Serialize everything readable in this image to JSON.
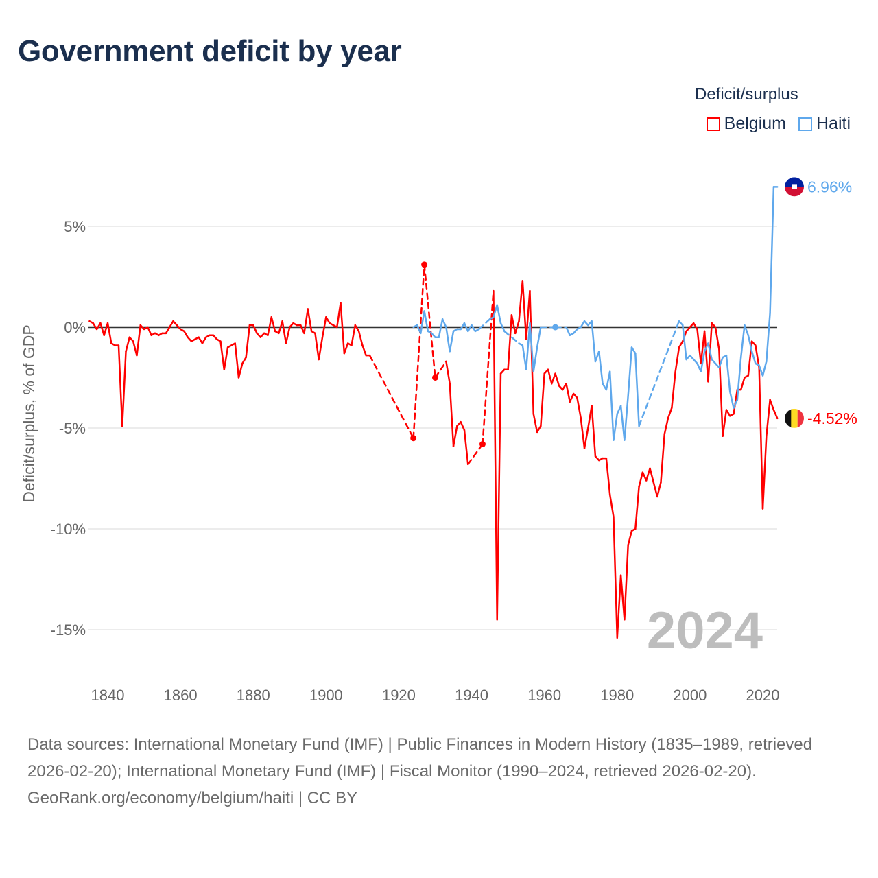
{
  "title": "Government deficit by year",
  "legend": {
    "title": "Deficit/surplus",
    "items": [
      {
        "name": "Belgium",
        "color": "#ff0000"
      },
      {
        "name": "Haiti",
        "color": "#5fa8ec"
      }
    ]
  },
  "chart_data": {
    "type": "line",
    "title": "Government deficit by year",
    "xlabel": "",
    "ylabel": "Deficit/surplus, % of GDP",
    "xlim": [
      1835,
      2024
    ],
    "ylim": [
      -17,
      8
    ],
    "x_ticks": [
      1840,
      1860,
      1880,
      1900,
      1920,
      1940,
      1960,
      1980,
      2000,
      2020
    ],
    "y_ticks": [
      {
        "value": 5,
        "label": "5%"
      },
      {
        "value": 0,
        "label": "0%"
      },
      {
        "value": -5,
        "label": "-5%"
      },
      {
        "value": -10,
        "label": "-10%"
      },
      {
        "value": -15,
        "label": "-15%"
      }
    ],
    "grid": true,
    "current_year": "2024",
    "series": [
      {
        "name": "Belgium",
        "color": "#ff0000",
        "end_label": "-4.52%",
        "points": [
          [
            1835,
            0.3
          ],
          [
            1836,
            0.2
          ],
          [
            1837,
            -0.1
          ],
          [
            1838,
            0.2
          ],
          [
            1839,
            -0.4
          ],
          [
            1840,
            0.2
          ],
          [
            1841,
            -0.8
          ],
          [
            1842,
            -0.9
          ],
          [
            1843,
            -0.9
          ],
          [
            1844,
            -4.9
          ],
          [
            1845,
            -1.2
          ],
          [
            1846,
            -0.5
          ],
          [
            1847,
            -0.7
          ],
          [
            1848,
            -1.4
          ],
          [
            1849,
            0.1
          ],
          [
            1850,
            -0.1
          ],
          [
            1851,
            0
          ],
          [
            1852,
            -0.4
          ],
          [
            1853,
            -0.3
          ],
          [
            1854,
            -0.4
          ],
          [
            1855,
            -0.3
          ],
          [
            1856,
            -0.3
          ],
          [
            1857,
            0
          ],
          [
            1858,
            0.3
          ],
          [
            1859,
            0.1
          ],
          [
            1860,
            -0.1
          ],
          [
            1861,
            -0.2
          ],
          [
            1862,
            -0.5
          ],
          [
            1863,
            -0.7
          ],
          [
            1864,
            -0.6
          ],
          [
            1865,
            -0.5
          ],
          [
            1866,
            -0.8
          ],
          [
            1867,
            -0.5
          ],
          [
            1868,
            -0.4
          ],
          [
            1869,
            -0.4
          ],
          [
            1870,
            -0.6
          ],
          [
            1871,
            -0.7
          ],
          [
            1872,
            -2.1
          ],
          [
            1873,
            -1.0
          ],
          [
            1874,
            -0.9
          ],
          [
            1875,
            -0.8
          ],
          [
            1876,
            -2.5
          ],
          [
            1877,
            -1.8
          ],
          [
            1878,
            -1.5
          ],
          [
            1879,
            0.1
          ],
          [
            1880,
            0.1
          ],
          [
            1881,
            -0.3
          ],
          [
            1882,
            -0.5
          ],
          [
            1883,
            -0.3
          ],
          [
            1884,
            -0.4
          ],
          [
            1885,
            0.5
          ],
          [
            1886,
            -0.2
          ],
          [
            1887,
            -0.3
          ],
          [
            1888,
            0.3
          ],
          [
            1889,
            -0.8
          ],
          [
            1890,
            0
          ],
          [
            1891,
            0.2
          ],
          [
            1892,
            0.1
          ],
          [
            1893,
            0.1
          ],
          [
            1894,
            -0.3
          ],
          [
            1895,
            0.9
          ],
          [
            1896,
            -0.2
          ],
          [
            1897,
            -0.3
          ],
          [
            1898,
            -1.6
          ],
          [
            1899,
            -0.5
          ],
          [
            1900,
            0.5
          ],
          [
            1901,
            0.2
          ],
          [
            1902,
            0.1
          ],
          [
            1903,
            0
          ],
          [
            1904,
            1.2
          ],
          [
            1905,
            -1.3
          ],
          [
            1906,
            -0.8
          ],
          [
            1907,
            -0.9
          ],
          [
            1908,
            0.1
          ],
          [
            1909,
            -0.2
          ],
          [
            1910,
            -0.9
          ],
          [
            1911,
            -1.4
          ],
          [
            1912,
            -1.4
          ],
          [
            1924,
            -5.5
          ],
          [
            1927,
            3.1
          ],
          [
            1930,
            -2.5
          ],
          [
            1933,
            -1.7
          ],
          [
            1934,
            -2.8
          ],
          [
            1935,
            -5.9
          ],
          [
            1936,
            -4.9
          ],
          [
            1937,
            -4.7
          ],
          [
            1938,
            -5.1
          ],
          [
            1939,
            -6.8
          ],
          [
            1943,
            -5.8
          ],
          [
            1946,
            1.8
          ],
          [
            1947,
            -14.5
          ],
          [
            1948,
            -2.3
          ],
          [
            1949,
            -2.1
          ],
          [
            1950,
            -2.1
          ],
          [
            1951,
            0.6
          ],
          [
            1952,
            -0.3
          ],
          [
            1953,
            0.3
          ],
          [
            1954,
            2.3
          ],
          [
            1955,
            -0.6
          ],
          [
            1956,
            1.8
          ],
          [
            1957,
            -4.3
          ],
          [
            1958,
            -5.2
          ],
          [
            1959,
            -4.9
          ],
          [
            1960,
            -2.3
          ],
          [
            1961,
            -2.1
          ],
          [
            1962,
            -2.8
          ],
          [
            1963,
            -2.3
          ],
          [
            1964,
            -2.9
          ],
          [
            1965,
            -3.1
          ],
          [
            1966,
            -2.8
          ],
          [
            1967,
            -3.7
          ],
          [
            1968,
            -3.3
          ],
          [
            1969,
            -3.5
          ],
          [
            1970,
            -4.5
          ],
          [
            1971,
            -6.0
          ],
          [
            1972,
            -5.0
          ],
          [
            1973,
            -3.9
          ],
          [
            1974,
            -6.4
          ],
          [
            1975,
            -6.6
          ],
          [
            1976,
            -6.5
          ],
          [
            1977,
            -6.5
          ],
          [
            1978,
            -8.3
          ],
          [
            1979,
            -9.4
          ],
          [
            1980,
            -15.4
          ],
          [
            1981,
            -12.3
          ],
          [
            1982,
            -14.5
          ],
          [
            1983,
            -10.8
          ],
          [
            1984,
            -10.1
          ],
          [
            1985,
            -10.0
          ],
          [
            1986,
            -7.9
          ],
          [
            1987,
            -7.2
          ],
          [
            1988,
            -7.6
          ],
          [
            1989,
            -7.0
          ],
          [
            1990,
            -7.7
          ],
          [
            1991,
            -8.4
          ],
          [
            1992,
            -7.7
          ],
          [
            1993,
            -5.3
          ],
          [
            1994,
            -4.5
          ],
          [
            1995,
            -4.0
          ],
          [
            1996,
            -2.2
          ],
          [
            1997,
            -1.0
          ],
          [
            1998,
            -0.7
          ],
          [
            1999,
            -0.2
          ],
          [
            2000,
            0.0
          ],
          [
            2001,
            0.2
          ],
          [
            2002,
            -0.1
          ],
          [
            2003,
            -1.8
          ],
          [
            2004,
            -0.2
          ],
          [
            2005,
            -2.7
          ],
          [
            2006,
            0.2
          ],
          [
            2007,
            0.0
          ],
          [
            2008,
            -1.1
          ],
          [
            2009,
            -5.4
          ],
          [
            2010,
            -4.1
          ],
          [
            2011,
            -4.4
          ],
          [
            2012,
            -4.3
          ],
          [
            2013,
            -3.1
          ],
          [
            2014,
            -3.1
          ],
          [
            2015,
            -2.5
          ],
          [
            2016,
            -2.4
          ],
          [
            2017,
            -0.7
          ],
          [
            2018,
            -0.9
          ],
          [
            2019,
            -2.0
          ],
          [
            2020,
            -9.0
          ],
          [
            2021,
            -5.4
          ],
          [
            2022,
            -3.6
          ],
          [
            2023,
            -4.1
          ],
          [
            2024,
            -4.52
          ]
        ]
      },
      {
        "name": "Haiti",
        "color": "#5fa8ec",
        "end_label": "6.96%",
        "points": [
          [
            1924,
            0
          ],
          [
            1925,
            0.1
          ],
          [
            1926,
            -0.3
          ],
          [
            1927,
            0.8
          ],
          [
            1928,
            -0.2
          ],
          [
            1929,
            -0.3
          ],
          [
            1930,
            -0.5
          ],
          [
            1931,
            -0.5
          ],
          [
            1932,
            0.4
          ],
          [
            1933,
            0
          ],
          [
            1934,
            -1.2
          ],
          [
            1935,
            -0.2
          ],
          [
            1936,
            -0.1
          ],
          [
            1937,
            -0.1
          ],
          [
            1938,
            0.2
          ],
          [
            1939,
            -0.2
          ],
          [
            1940,
            0.1
          ],
          [
            1941,
            -0.2
          ],
          [
            1942,
            -0.1
          ],
          [
            1945,
            0.4
          ],
          [
            1946,
            0.5
          ],
          [
            1947,
            1.1
          ],
          [
            1948,
            0.2
          ],
          [
            1949,
            -0.2
          ],
          [
            1953,
            -0.8
          ],
          [
            1954,
            -0.9
          ],
          [
            1955,
            -2.1
          ],
          [
            1956,
            0.2
          ],
          [
            1957,
            -2.2
          ],
          [
            1958,
            -1.0
          ],
          [
            1959,
            0.0
          ],
          [
            1963,
            0.0
          ],
          [
            1966,
            0.0
          ],
          [
            1967,
            -0.4
          ],
          [
            1968,
            -0.3
          ],
          [
            1969,
            -0.1
          ],
          [
            1970,
            0.0
          ],
          [
            1971,
            0.3
          ],
          [
            1972,
            0.1
          ],
          [
            1973,
            0.3
          ],
          [
            1974,
            -1.7
          ],
          [
            1975,
            -1.2
          ],
          [
            1976,
            -2.8
          ],
          [
            1977,
            -3.1
          ],
          [
            1978,
            -2.2
          ],
          [
            1979,
            -5.6
          ],
          [
            1980,
            -4.3
          ],
          [
            1981,
            -3.9
          ],
          [
            1982,
            -5.6
          ],
          [
            1983,
            -3.4
          ],
          [
            1984,
            -1.0
          ],
          [
            1985,
            -1.3
          ],
          [
            1986,
            -4.9
          ],
          [
            1997,
            0.3
          ],
          [
            1998,
            0.1
          ],
          [
            1999,
            -1.6
          ],
          [
            2000,
            -1.4
          ],
          [
            2001,
            -1.6
          ],
          [
            2002,
            -1.8
          ],
          [
            2003,
            -2.2
          ],
          [
            2004,
            -1.2
          ],
          [
            2005,
            -0.8
          ],
          [
            2006,
            -1.6
          ],
          [
            2007,
            -1.8
          ],
          [
            2008,
            -2.0
          ],
          [
            2009,
            -1.5
          ],
          [
            2010,
            -1.4
          ],
          [
            2011,
            -3.2
          ],
          [
            2012,
            -4.0
          ],
          [
            2013,
            -3.6
          ],
          [
            2014,
            -1.5
          ],
          [
            2015,
            0.1
          ],
          [
            2016,
            -0.4
          ],
          [
            2017,
            -1.2
          ],
          [
            2018,
            -1.8
          ],
          [
            2019,
            -1.9
          ],
          [
            2020,
            -2.4
          ],
          [
            2021,
            -1.7
          ],
          [
            2022,
            0.7
          ],
          [
            2023,
            6.96
          ],
          [
            2024,
            6.96
          ]
        ]
      }
    ]
  },
  "footer": {
    "sources": "Data sources: International Monetary Fund (IMF) | Public Finances in Modern History (1835–1989, retrieved 2026-02-20); International Monetary Fund (IMF) | Fiscal Monitor (1990–2024, retrieved 2026-02-20).",
    "credit": "GeoRank.org/economy/belgium/haiti | CC BY"
  }
}
